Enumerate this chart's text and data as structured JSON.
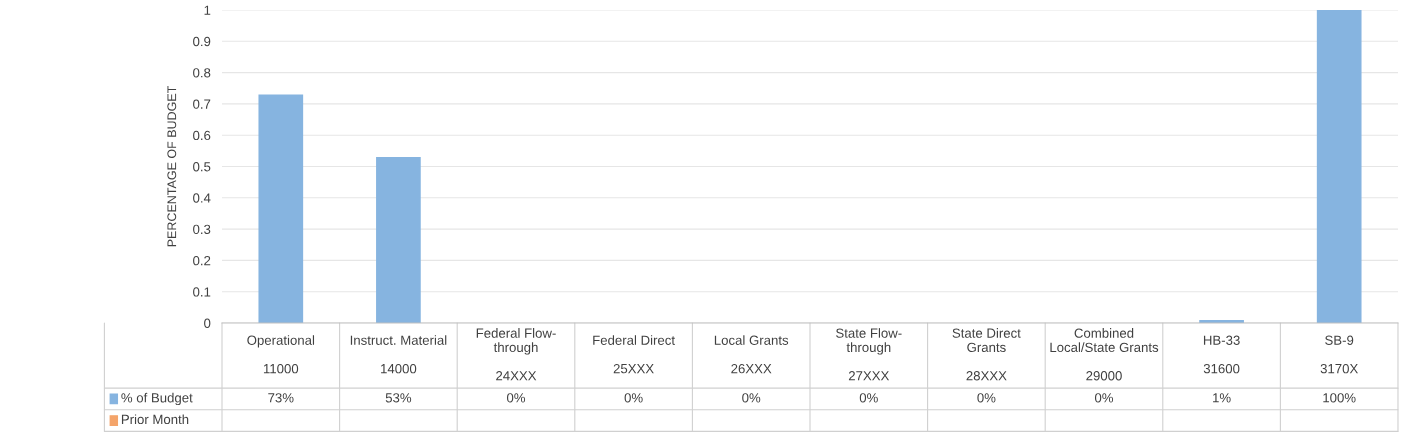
{
  "chart_data": {
    "type": "bar",
    "ylabel": "PERCENTAGE OF BUDGET",
    "categories": [
      "Operational\n\n11000",
      "Instruct. Material\n\n14000",
      "Federal Flow-\nthrough\n\n24XXX",
      "Federal Direct\n\n25XXX",
      "Local Grants\n\n26XXX",
      "State Flow-\nthrough\n\n27XXX",
      "State Direct\nGrants\n\n28XXX",
      "Combined\nLocal/State Grants\n\n29000",
      "HB-33\n\n31600",
      "SB-9\n\n3170X"
    ],
    "series": [
      {
        "name": "% of Budget",
        "color": "#86b4e0",
        "values": [
          0.73,
          0.53,
          0,
          0,
          0,
          0,
          0,
          0,
          0.01,
          1
        ],
        "value_labels": [
          "73%",
          "53%",
          "0%",
          "0%",
          "0%",
          "0%",
          "0%",
          "0%",
          "1%",
          "100%"
        ]
      },
      {
        "name": "Prior Month",
        "color": "#f4a46a",
        "values": [
          null,
          null,
          null,
          null,
          null,
          null,
          null,
          null,
          null,
          null
        ]
      }
    ],
    "ylim": [
      0,
      1
    ],
    "yticks": [
      0,
      0.1,
      0.2,
      0.3,
      0.4,
      0.5,
      0.6,
      0.7,
      0.8,
      0.9,
      1
    ],
    "grid": "y",
    "legend": "bottom"
  }
}
